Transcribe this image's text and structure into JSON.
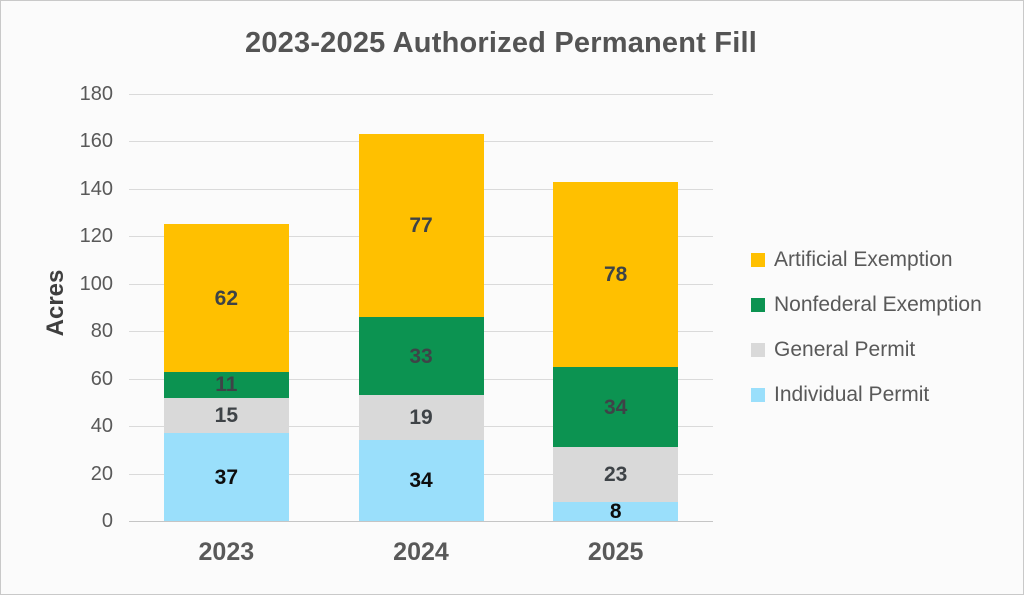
{
  "chart_data": {
    "type": "bar",
    "stacked": true,
    "title": "2023-2025 Authorized Permanent Fill",
    "ylabel": "Acres",
    "xlabel": "",
    "categories": [
      "2023",
      "2024",
      "2025"
    ],
    "series": [
      {
        "name": "Individual Permit",
        "color": "#9ADFFB",
        "label_color": "#0D0D0D",
        "values": [
          37,
          34,
          8
        ]
      },
      {
        "name": "General Permit",
        "color": "#D9D9D9",
        "label_color": "#3E4347",
        "values": [
          15,
          19,
          23
        ]
      },
      {
        "name": "Nonfederal Exemption",
        "color": "#0C9351",
        "label_color": "#3E4347",
        "values": [
          11,
          33,
          34
        ]
      },
      {
        "name": "Artificial Exemption",
        "color": "#FFC000",
        "label_color": "#3E4347",
        "values": [
          62,
          77,
          78
        ]
      }
    ],
    "totals": [
      125,
      163,
      143
    ],
    "ylim": [
      0,
      180
    ],
    "ytick_step": 20,
    "yticks": [
      0,
      20,
      40,
      60,
      80,
      100,
      120,
      140,
      160,
      180
    ],
    "grid": true,
    "legend_position": "right",
    "legend_order": [
      "Artificial Exemption",
      "Nonfederal Exemption",
      "General Permit",
      "Individual Permit"
    ]
  },
  "colors": {
    "background": "#FBFBFB",
    "border": "#C9C9C9",
    "gridline": "#DADADA",
    "title_text": "#545454",
    "axis_text": "#595959"
  }
}
